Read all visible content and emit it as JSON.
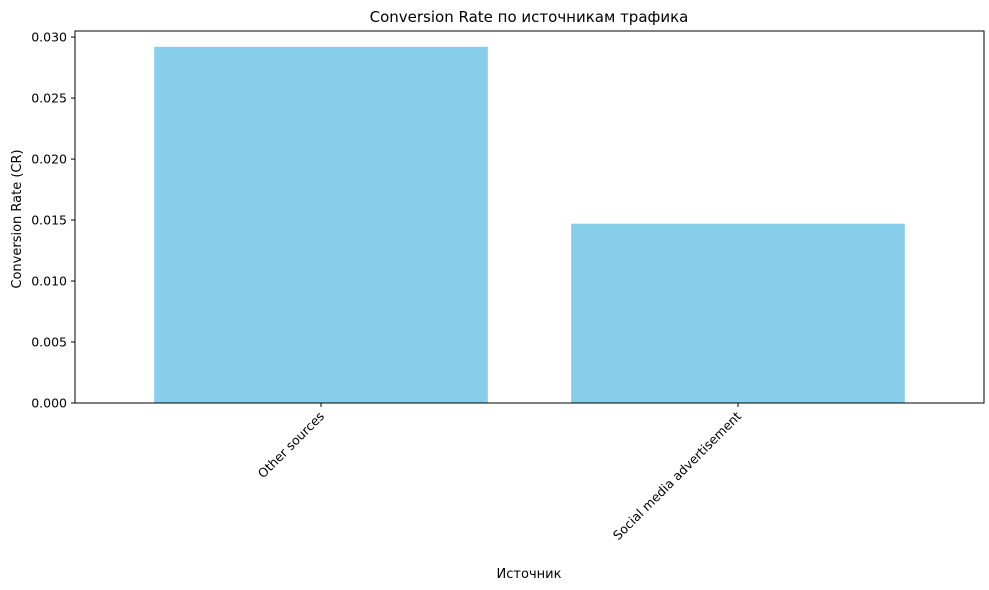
{
  "chart_data": {
    "type": "bar",
    "title": "Conversion Rate по источникам трафика",
    "xlabel": "Источник",
    "ylabel": "Conversion Rate (CR)",
    "categories": [
      "Other sources",
      "Social media advertisement"
    ],
    "values": [
      0.0292,
      0.0147
    ],
    "ylim": [
      0,
      0.0305
    ],
    "yticks": [
      "0.000",
      "0.005",
      "0.010",
      "0.015",
      "0.020",
      "0.025",
      "0.030"
    ],
    "ytick_values": [
      0,
      0.005,
      0.01,
      0.015,
      0.02,
      0.025,
      0.03
    ],
    "bar_color": "#87ceeb",
    "grid": false,
    "legend": "none",
    "xtick_rotation": 45
  }
}
